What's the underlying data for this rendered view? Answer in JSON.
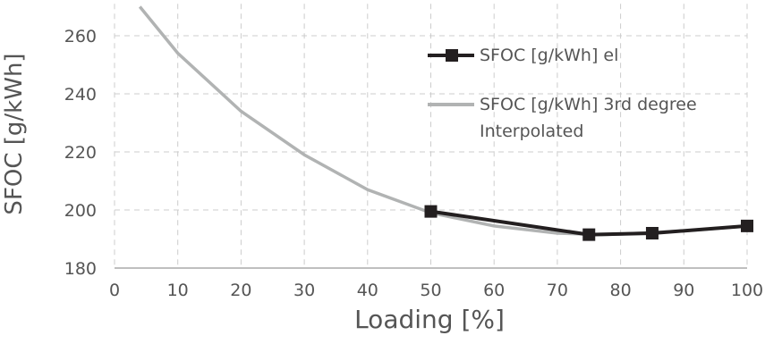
{
  "chart_data": {
    "type": "line",
    "x_label": "Loading [%]",
    "y_label": "SFOC [g/kWh]",
    "xlim": [
      0,
      100
    ],
    "xticks": [
      0,
      10,
      20,
      30,
      40,
      50,
      60,
      70,
      80,
      90,
      100
    ],
    "ylim": [
      180,
      271
    ],
    "yticks": [
      180,
      200,
      220,
      240,
      260
    ],
    "grid": true,
    "series": [
      {
        "name": "SFOC [g/kWh] el",
        "color": "#231f20",
        "marker": "square",
        "x": [
          50,
          75,
          85,
          100
        ],
        "values": [
          199.5,
          191.5,
          192,
          194.5
        ]
      },
      {
        "name": "SFOC [g/kWh] 3rd degree Interpolated",
        "color": "#b1b3b3",
        "x": [
          4,
          10,
          20,
          30,
          40,
          50,
          60,
          70,
          77,
          80,
          90,
          100
        ],
        "values": [
          270,
          254,
          234,
          219,
          207,
          199,
          194.5,
          192,
          191.5,
          191.7,
          192.8,
          194.5
        ]
      }
    ]
  }
}
